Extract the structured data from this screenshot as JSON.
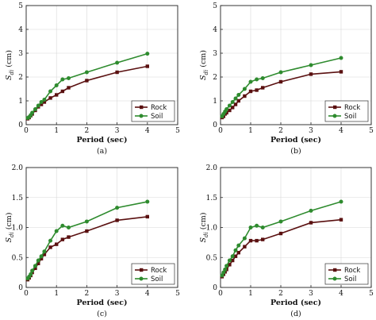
{
  "chart_data": [
    {
      "type": "line",
      "caption": "(a)",
      "xlabel": "Period (sec)",
      "ylabel": "S_d_i (cm)",
      "ylabel_main": "S",
      "ylabel_sub": "di",
      "ylabel_unit": " (cm)",
      "xlim": [
        0,
        5
      ],
      "ylim": [
        0,
        5
      ],
      "xticks": [
        "0",
        "1",
        "2",
        "3",
        "4",
        "5"
      ],
      "yticks": [
        "0",
        "1",
        "2",
        "3",
        "4",
        "5"
      ],
      "grid": true,
      "legend_position": "bottom-right",
      "series": [
        {
          "name": "Rock",
          "color": "#5a1010",
          "marker": "square",
          "x": [
            0.05,
            0.1,
            0.15,
            0.2,
            0.3,
            0.4,
            0.5,
            0.6,
            0.8,
            1.0,
            1.2,
            1.4,
            2.0,
            3.0,
            4.0
          ],
          "y": [
            0.25,
            0.3,
            0.38,
            0.45,
            0.6,
            0.75,
            0.85,
            0.95,
            1.12,
            1.25,
            1.4,
            1.55,
            1.85,
            2.2,
            2.45
          ]
        },
        {
          "name": "Soil",
          "color": "#2e8b2e",
          "marker": "circle",
          "x": [
            0.05,
            0.1,
            0.15,
            0.2,
            0.3,
            0.4,
            0.5,
            0.6,
            0.8,
            1.0,
            1.2,
            1.4,
            2.0,
            3.0,
            4.0
          ],
          "y": [
            0.28,
            0.32,
            0.4,
            0.5,
            0.65,
            0.8,
            0.95,
            1.05,
            1.4,
            1.65,
            1.9,
            1.95,
            2.2,
            2.6,
            2.98
          ]
        }
      ]
    },
    {
      "type": "line",
      "caption": "(b)",
      "xlabel": "Period (sec)",
      "ylabel": "S_d_i (cm)",
      "ylabel_main": "S",
      "ylabel_sub": "di",
      "ylabel_unit": " (cm)",
      "xlim": [
        0,
        5
      ],
      "ylim": [
        0,
        5
      ],
      "xticks": [
        "0",
        "1",
        "2",
        "3",
        "4",
        "5"
      ],
      "yticks": [
        "0",
        "1",
        "2",
        "3",
        "4",
        "5"
      ],
      "grid": true,
      "legend_position": "bottom-right",
      "series": [
        {
          "name": "Rock",
          "color": "#5a1010",
          "marker": "square",
          "x": [
            0.05,
            0.1,
            0.15,
            0.2,
            0.3,
            0.4,
            0.5,
            0.6,
            0.8,
            1.0,
            1.2,
            1.4,
            2.0,
            3.0,
            4.0
          ],
          "y": [
            0.3,
            0.35,
            0.45,
            0.5,
            0.6,
            0.72,
            0.85,
            1.0,
            1.2,
            1.4,
            1.45,
            1.55,
            1.8,
            2.12,
            2.22
          ]
        },
        {
          "name": "Soil",
          "color": "#2e8b2e",
          "marker": "circle",
          "x": [
            0.05,
            0.1,
            0.15,
            0.2,
            0.3,
            0.4,
            0.5,
            0.6,
            0.8,
            1.0,
            1.2,
            1.4,
            2.0,
            3.0,
            4.0
          ],
          "y": [
            0.35,
            0.45,
            0.55,
            0.65,
            0.8,
            0.95,
            1.1,
            1.25,
            1.5,
            1.8,
            1.9,
            1.95,
            2.2,
            2.5,
            2.8
          ]
        }
      ]
    },
    {
      "type": "line",
      "caption": "(c)",
      "xlabel": "Period (sec)",
      "ylabel": "S_d_i (cm)",
      "ylabel_main": "S",
      "ylabel_sub": "di",
      "ylabel_unit": " (cm)",
      "xlim": [
        0,
        5
      ],
      "ylim": [
        0,
        2.0
      ],
      "xticks": [
        "0",
        "1",
        "2",
        "3",
        "4",
        "5"
      ],
      "yticks": [
        "0",
        "0.5",
        "1.0",
        "1.5",
        "2.0"
      ],
      "grid": true,
      "legend_position": "bottom-right",
      "series": [
        {
          "name": "Rock",
          "color": "#5a1010",
          "marker": "square",
          "x": [
            0.05,
            0.1,
            0.15,
            0.2,
            0.3,
            0.4,
            0.5,
            0.6,
            0.8,
            1.0,
            1.2,
            1.4,
            2.0,
            3.0,
            4.0
          ],
          "y": [
            0.13,
            0.16,
            0.2,
            0.25,
            0.32,
            0.4,
            0.48,
            0.55,
            0.67,
            0.72,
            0.8,
            0.84,
            0.94,
            1.12,
            1.18
          ]
        },
        {
          "name": "Soil",
          "color": "#2e8b2e",
          "marker": "circle",
          "x": [
            0.05,
            0.1,
            0.15,
            0.2,
            0.3,
            0.4,
            0.5,
            0.6,
            0.8,
            1.0,
            1.2,
            1.4,
            2.0,
            3.0,
            4.0
          ],
          "y": [
            0.15,
            0.18,
            0.22,
            0.28,
            0.36,
            0.45,
            0.52,
            0.6,
            0.78,
            0.94,
            1.03,
            1.0,
            1.1,
            1.33,
            1.43
          ]
        }
      ]
    },
    {
      "type": "line",
      "caption": "(d)",
      "xlabel": "Period (sec)",
      "ylabel": "S_d_i (cm)",
      "ylabel_main": "S",
      "ylabel_sub": "di",
      "ylabel_unit": " (cm)",
      "xlim": [
        0,
        5
      ],
      "ylim": [
        0,
        2.0
      ],
      "xticks": [
        "0",
        "1",
        "2",
        "3",
        "4",
        "5"
      ],
      "yticks": [
        "0",
        "0.5",
        "1.0",
        "1.5",
        "2.0"
      ],
      "grid": true,
      "legend_position": "bottom-right",
      "series": [
        {
          "name": "Rock",
          "color": "#5a1010",
          "marker": "square",
          "x": [
            0.05,
            0.1,
            0.15,
            0.2,
            0.3,
            0.4,
            0.5,
            0.6,
            0.8,
            1.0,
            1.2,
            1.4,
            2.0,
            3.0,
            4.0
          ],
          "y": [
            0.18,
            0.22,
            0.26,
            0.3,
            0.38,
            0.45,
            0.52,
            0.58,
            0.68,
            0.78,
            0.78,
            0.8,
            0.9,
            1.08,
            1.13
          ]
        },
        {
          "name": "Soil",
          "color": "#2e8b2e",
          "marker": "circle",
          "x": [
            0.05,
            0.1,
            0.15,
            0.2,
            0.3,
            0.4,
            0.5,
            0.6,
            0.8,
            1.0,
            1.2,
            1.4,
            2.0,
            3.0,
            4.0
          ],
          "y": [
            0.2,
            0.25,
            0.3,
            0.36,
            0.45,
            0.52,
            0.62,
            0.7,
            0.82,
            1.0,
            1.03,
            1.0,
            1.1,
            1.28,
            1.43
          ]
        }
      ]
    }
  ]
}
